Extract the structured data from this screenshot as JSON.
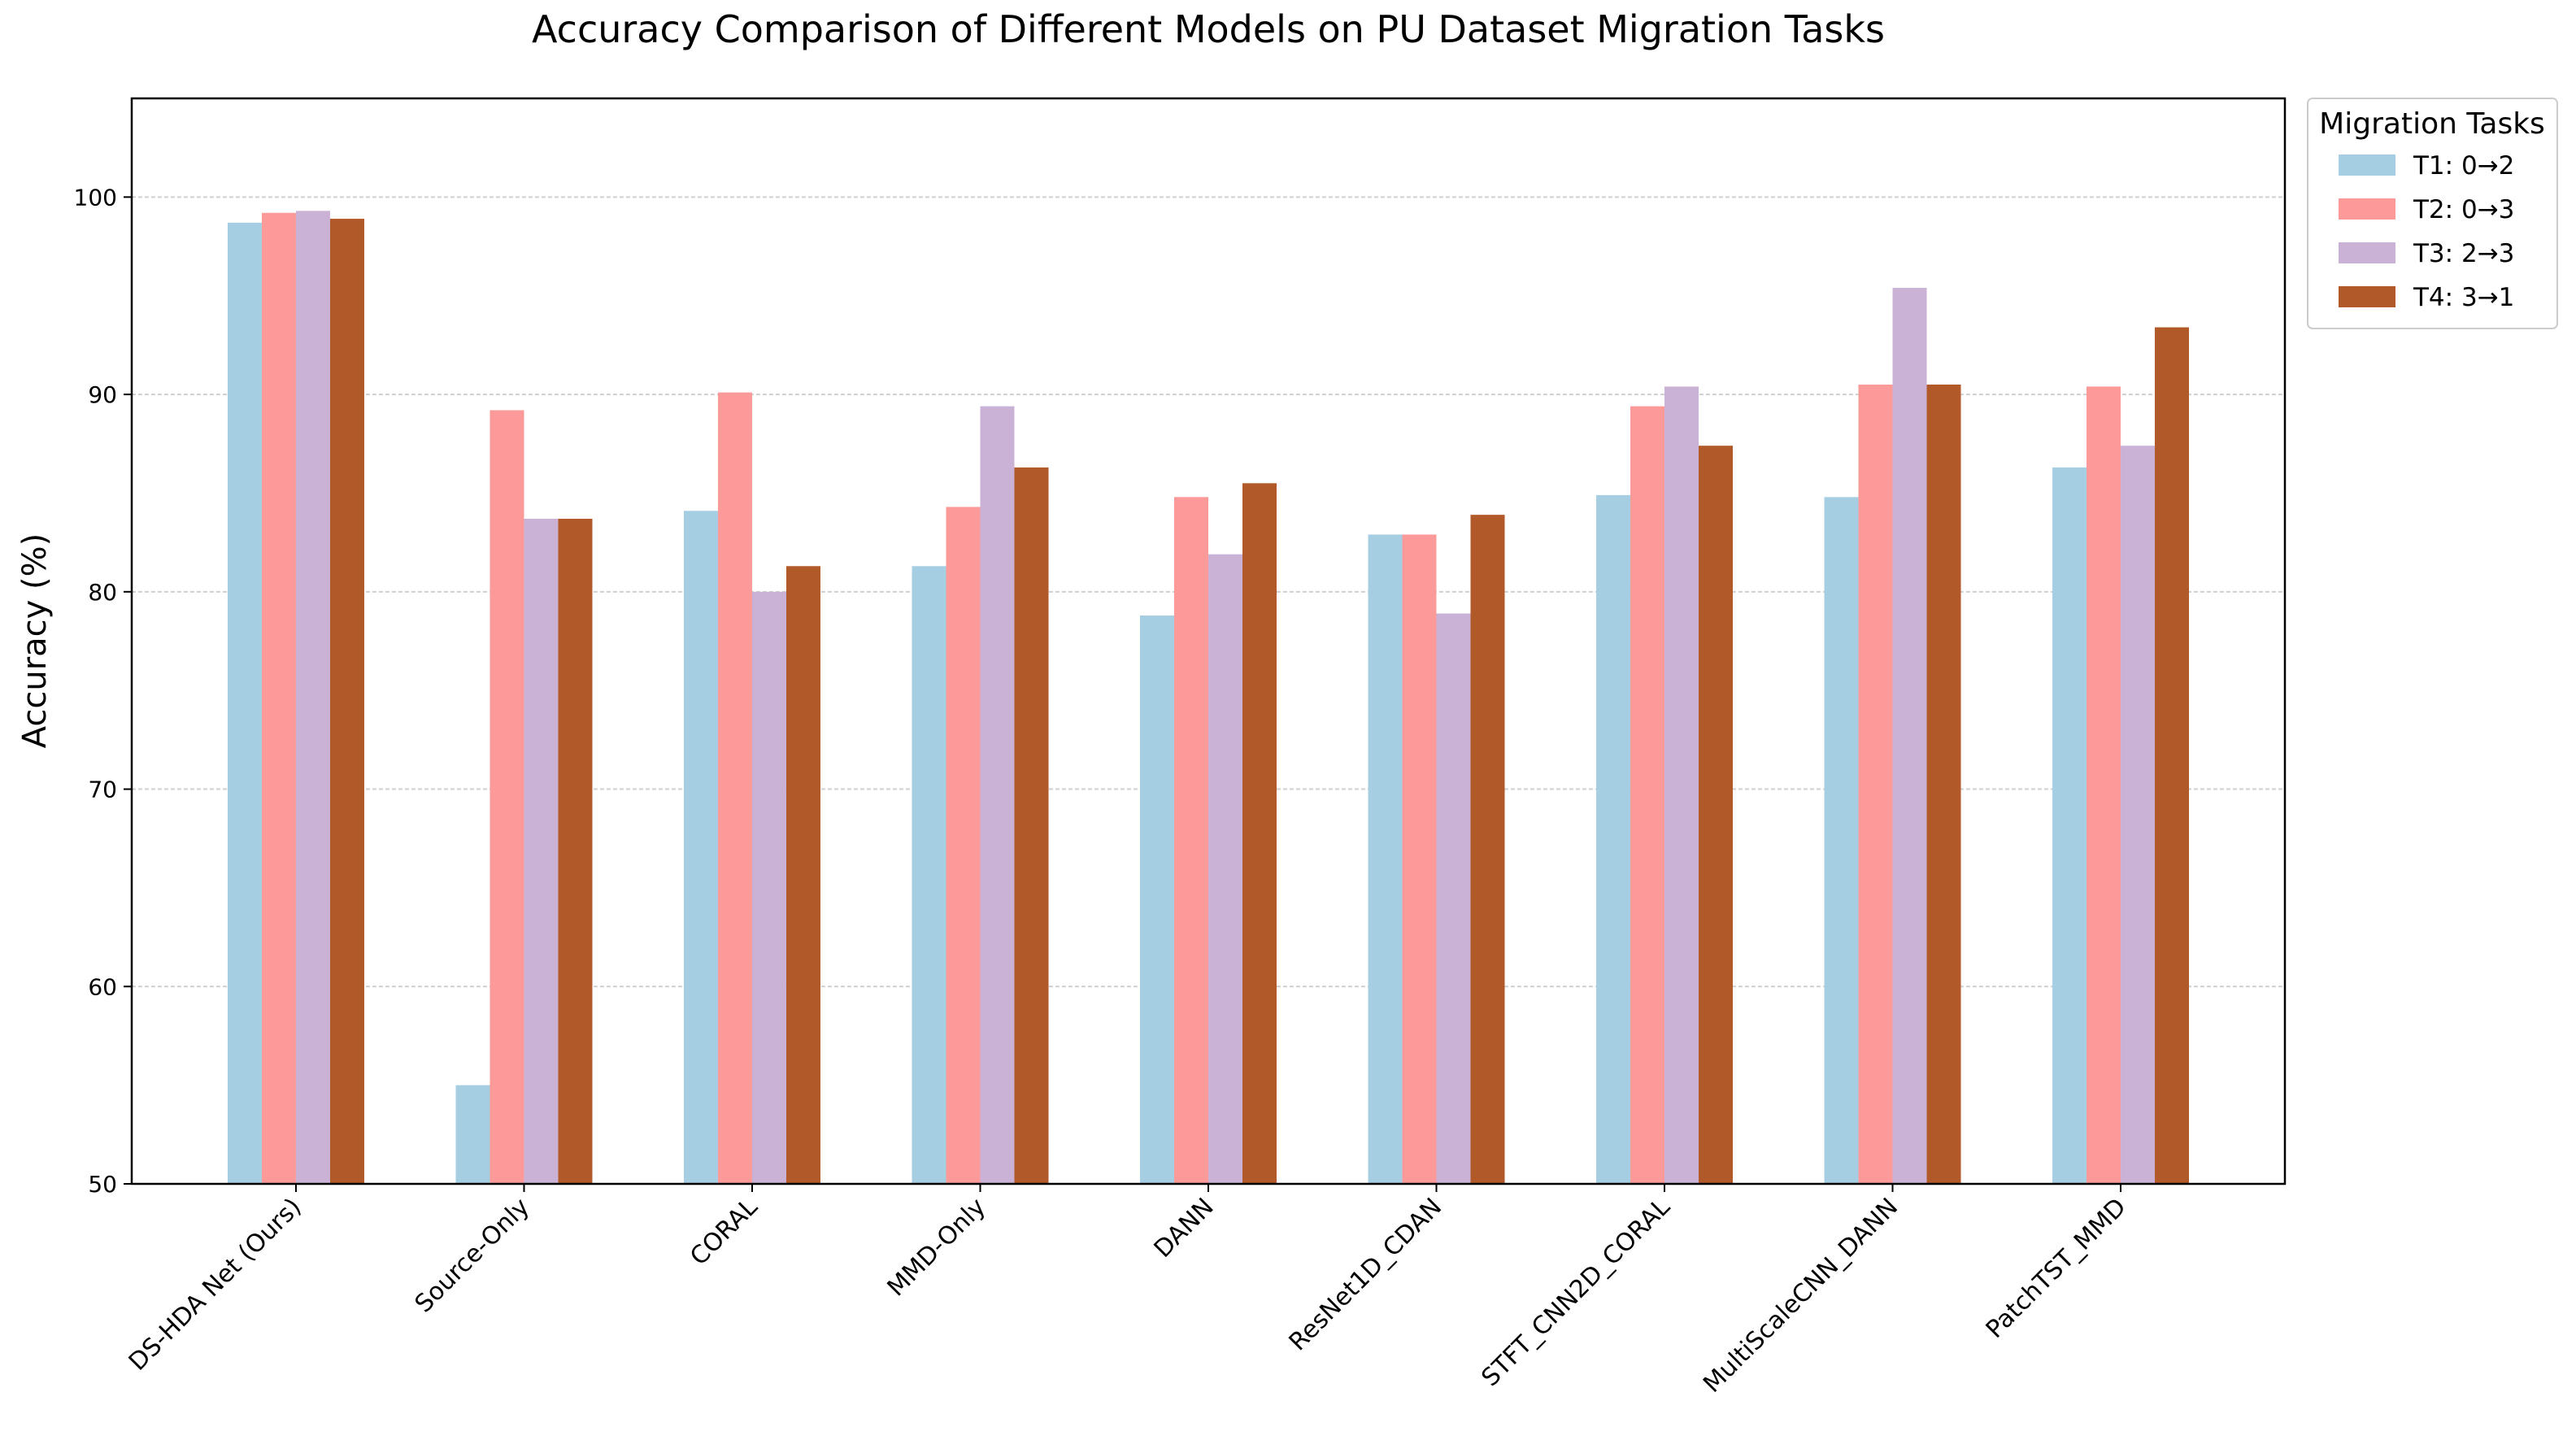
{
  "chart_data": {
    "type": "bar",
    "title": "Accuracy Comparison of Different Models on PU Dataset Migration Tasks",
    "xlabel": "",
    "ylabel": "Accuracy (%)",
    "ylim": [
      50,
      105
    ],
    "yticks": [
      50,
      60,
      70,
      80,
      90,
      100
    ],
    "grid": true,
    "legend_title": "Migration Tasks",
    "legend_placement": "outside-top-right",
    "categories": [
      "DS-HDA Net (Ours)",
      "Source-Only",
      "CORAL",
      "MMD-Only",
      "DANN",
      "ResNet1D_CDAN",
      "STFT_CNN2D_CORAL",
      "MultiScaleCNN_DANN",
      "PatchTST_MMD"
    ],
    "series": [
      {
        "name": "T1: 0→2",
        "color": "#a6cee3",
        "values": [
          98.7,
          55.0,
          84.1,
          81.3,
          78.8,
          82.9,
          84.9,
          84.8,
          86.3
        ]
      },
      {
        "name": "T2: 0→3",
        "color": "#fb9a99",
        "values": [
          99.2,
          89.2,
          90.1,
          84.3,
          84.8,
          82.9,
          89.4,
          90.5,
          90.4
        ]
      },
      {
        "name": "T3: 2→3",
        "color": "#cab2d6",
        "values": [
          99.3,
          83.7,
          80.0,
          89.4,
          81.9,
          78.9,
          90.4,
          95.4,
          87.4
        ]
      },
      {
        "name": "T4: 3→1",
        "color": "#b15928",
        "values": [
          98.9,
          83.7,
          81.3,
          86.3,
          85.5,
          83.9,
          87.4,
          90.5,
          93.4
        ]
      }
    ]
  }
}
